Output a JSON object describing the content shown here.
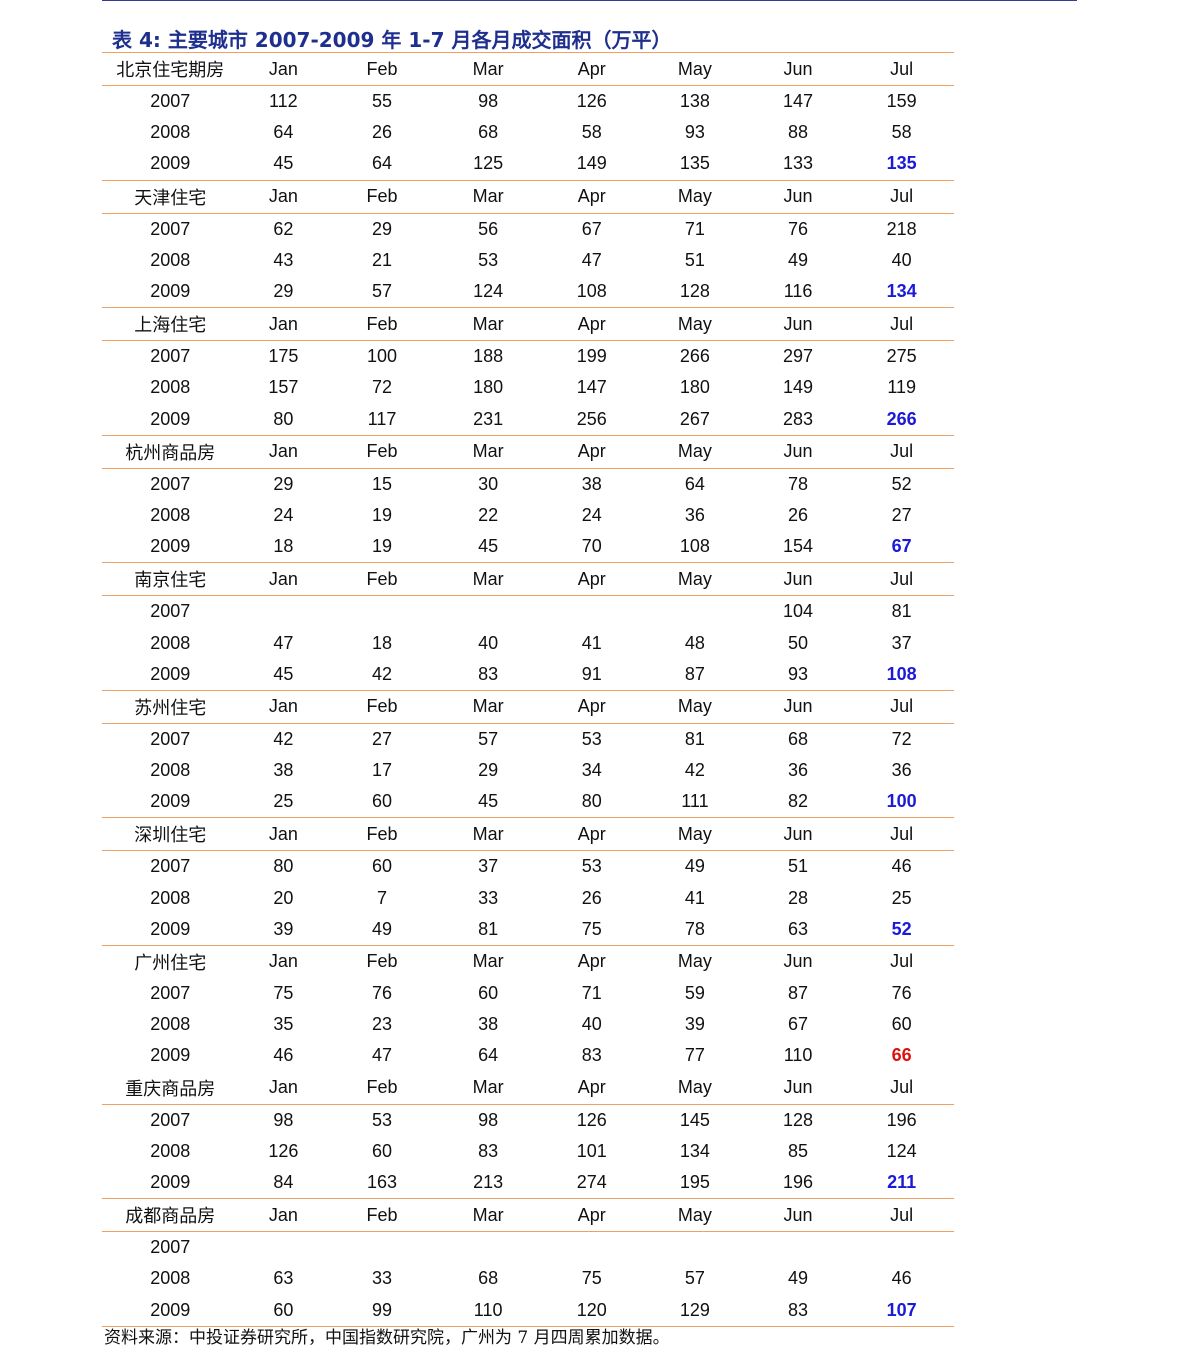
{
  "title": "表 4: 主要城市 2007-2009 年 1-7 月各月成交面积（万平）",
  "months": [
    "Jan",
    "Feb",
    "Mar",
    "Apr",
    "May",
    "Jun",
    "Jul"
  ],
  "colors": {
    "highlight_blue": "#1a1ad8",
    "highlight_red": "#e01010",
    "rule_orange": "#f0a060",
    "title_blue": "#1f2f8f"
  },
  "sections": [
    {
      "city": "北京住宅期房",
      "rows": [
        {
          "year": "2007",
          "values": [
            "112",
            "55",
            "98",
            "126",
            "138",
            "147",
            "159"
          ]
        },
        {
          "year": "2008",
          "values": [
            "64",
            "26",
            "68",
            "58",
            "93",
            "88",
            "58"
          ]
        },
        {
          "year": "2009",
          "values": [
            "45",
            "64",
            "125",
            "149",
            "135",
            "133",
            "135"
          ],
          "jul_color": "blue"
        }
      ]
    },
    {
      "city": "天津住宅",
      "rows": [
        {
          "year": "2007",
          "values": [
            "62",
            "29",
            "56",
            "67",
            "71",
            "76",
            "218"
          ]
        },
        {
          "year": "2008",
          "values": [
            "43",
            "21",
            "53",
            "47",
            "51",
            "49",
            "40"
          ]
        },
        {
          "year": "2009",
          "values": [
            "29",
            "57",
            "124",
            "108",
            "128",
            "116",
            "134"
          ],
          "jul_color": "blue"
        }
      ]
    },
    {
      "city": "上海住宅",
      "rows": [
        {
          "year": "2007",
          "values": [
            "175",
            "100",
            "188",
            "199",
            "266",
            "297",
            "275"
          ]
        },
        {
          "year": "2008",
          "values": [
            "157",
            "72",
            "180",
            "147",
            "180",
            "149",
            "119"
          ]
        },
        {
          "year": "2009",
          "values": [
            "80",
            "117",
            "231",
            "256",
            "267",
            "283",
            "266"
          ],
          "jul_color": "blue"
        }
      ]
    },
    {
      "city": "杭州商品房",
      "rows": [
        {
          "year": "2007",
          "values": [
            "29",
            "15",
            "30",
            "38",
            "64",
            "78",
            "52"
          ]
        },
        {
          "year": "2008",
          "values": [
            "24",
            "19",
            "22",
            "24",
            "36",
            "26",
            "27"
          ]
        },
        {
          "year": "2009",
          "values": [
            "18",
            "19",
            "45",
            "70",
            "108",
            "154",
            "67"
          ],
          "jul_color": "blue"
        }
      ]
    },
    {
      "city": "南京住宅",
      "rows": [
        {
          "year": "2007",
          "values": [
            "",
            "",
            "",
            "",
            "",
            "104",
            "81"
          ]
        },
        {
          "year": "2008",
          "values": [
            "47",
            "18",
            "40",
            "41",
            "48",
            "50",
            "37"
          ]
        },
        {
          "year": "2009",
          "values": [
            "45",
            "42",
            "83",
            "91",
            "87",
            "93",
            "108"
          ],
          "jul_color": "blue"
        }
      ]
    },
    {
      "city": "苏州住宅",
      "rows": [
        {
          "year": "2007",
          "values": [
            "42",
            "27",
            "57",
            "53",
            "81",
            "68",
            "72"
          ]
        },
        {
          "year": "2008",
          "values": [
            "38",
            "17",
            "29",
            "34",
            "42",
            "36",
            "36"
          ]
        },
        {
          "year": "2009",
          "values": [
            "25",
            "60",
            "45",
            "80",
            "111",
            "82",
            "100"
          ],
          "jul_color": "blue"
        }
      ]
    },
    {
      "city": "深圳住宅",
      "rows": [
        {
          "year": "2007",
          "values": [
            "80",
            "60",
            "37",
            "53",
            "49",
            "51",
            "46"
          ]
        },
        {
          "year": "2008",
          "values": [
            "20",
            "7",
            "33",
            "26",
            "41",
            "28",
            "25"
          ]
        },
        {
          "year": "2009",
          "values": [
            "39",
            "49",
            "81",
            "75",
            "78",
            "63",
            "52"
          ],
          "jul_color": "blue"
        }
      ]
    },
    {
      "city": "广州住宅",
      "no_rule": true,
      "rows": [
        {
          "year": "2007",
          "values": [
            "75",
            "76",
            "60",
            "71",
            "59",
            "87",
            "76"
          ]
        },
        {
          "year": "2008",
          "values": [
            "35",
            "23",
            "38",
            "40",
            "39",
            "67",
            "60"
          ]
        },
        {
          "year": "2009",
          "values": [
            "46",
            "47",
            "64",
            "83",
            "77",
            "110",
            "66"
          ],
          "jul_color": "red"
        }
      ]
    },
    {
      "city": "重庆商品房",
      "rows": [
        {
          "year": "2007",
          "values": [
            "98",
            "53",
            "98",
            "126",
            "145",
            "128",
            "196"
          ]
        },
        {
          "year": "2008",
          "values": [
            "126",
            "60",
            "83",
            "101",
            "134",
            "85",
            "124"
          ]
        },
        {
          "year": "2009",
          "values": [
            "84",
            "163",
            "213",
            "274",
            "195",
            "196",
            "211"
          ],
          "jul_color": "blue"
        }
      ]
    },
    {
      "city": "成都商品房",
      "rows": [
        {
          "year": "2007",
          "values": [
            "",
            "",
            "",
            "",
            "",
            "",
            ""
          ]
        },
        {
          "year": "2008",
          "values": [
            "63",
            "33",
            "68",
            "75",
            "57",
            "49",
            "46"
          ]
        },
        {
          "year": "2009",
          "values": [
            "60",
            "99",
            "110",
            "120",
            "129",
            "83",
            "107"
          ],
          "jul_color": "blue"
        }
      ]
    }
  ],
  "source": "资料来源：中投证券研究所，中国指数研究院，广州为 7 月四周累加数据。"
}
